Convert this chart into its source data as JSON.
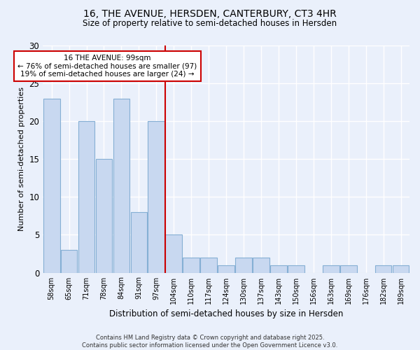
{
  "title1": "16, THE AVENUE, HERSDEN, CANTERBURY, CT3 4HR",
  "title2": "Size of property relative to semi-detached houses in Hersden",
  "xlabel": "Distribution of semi-detached houses by size in Hersden",
  "ylabel": "Number of semi-detached properties",
  "categories": [
    "58sqm",
    "65sqm",
    "71sqm",
    "78sqm",
    "84sqm",
    "91sqm",
    "97sqm",
    "104sqm",
    "110sqm",
    "117sqm",
    "124sqm",
    "130sqm",
    "137sqm",
    "143sqm",
    "150sqm",
    "156sqm",
    "163sqm",
    "169sqm",
    "176sqm",
    "182sqm",
    "189sqm"
  ],
  "values": [
    23,
    3,
    20,
    15,
    23,
    8,
    20,
    5,
    2,
    2,
    1,
    2,
    2,
    1,
    1,
    0,
    1,
    1,
    0,
    1,
    1
  ],
  "bar_color": "#c8d8f0",
  "bar_edgecolor": "#85afd4",
  "background_color": "#eaf0fb",
  "grid_color": "#ffffff",
  "vline_color": "#cc0000",
  "annotation_text": "16 THE AVENUE: 99sqm\n← 76% of semi-detached houses are smaller (97)\n19% of semi-detached houses are larger (24) →",
  "annotation_box_color": "#ffffff",
  "annotation_box_edgecolor": "#cc0000",
  "footer_text": "Contains HM Land Registry data © Crown copyright and database right 2025.\nContains public sector information licensed under the Open Government Licence v3.0.",
  "ylim": [
    0,
    30
  ],
  "yticks": [
    0,
    5,
    10,
    15,
    20,
    25,
    30
  ]
}
